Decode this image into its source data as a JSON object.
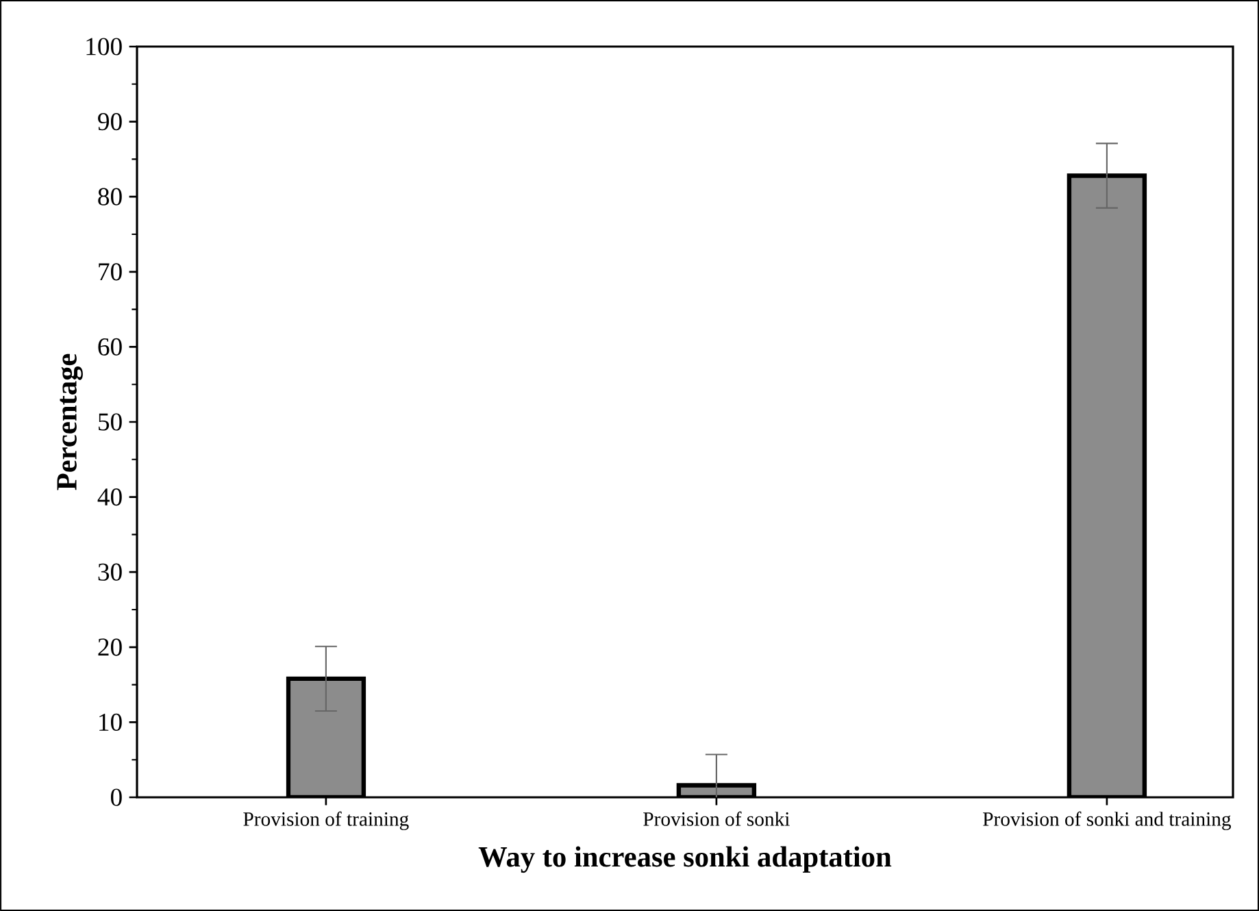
{
  "chart_data": {
    "type": "bar",
    "xlabel": "Way to increase sonki adaptation",
    "ylabel": "Percentage",
    "categories": [
      "Provision of training",
      "Provision of sonki",
      "Provision of sonki and training"
    ],
    "values": [
      15.8,
      1.6,
      82.8
    ],
    "errors": [
      4.3,
      4.1,
      4.3
    ],
    "color": "#8c8c8c",
    "ylim": [
      0,
      100
    ],
    "yticks": [
      0,
      10,
      20,
      30,
      40,
      50,
      60,
      70,
      80,
      90,
      100
    ],
    "grid": false
  }
}
